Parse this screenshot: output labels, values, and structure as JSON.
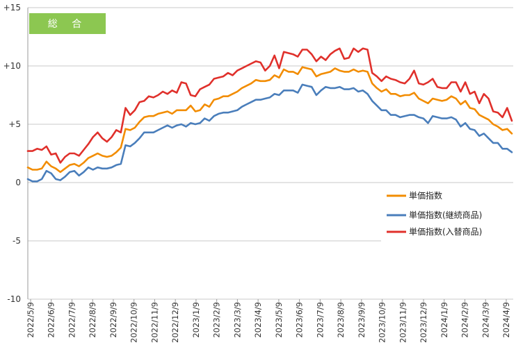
{
  "chart_data": {
    "type": "line",
    "title": "",
    "badge": {
      "label": "総 合",
      "color": "#8cc751"
    },
    "xlabel": "",
    "ylabel": "",
    "ylim": [
      -10,
      15
    ],
    "y_ticks": [
      {
        "value": 15,
        "label": "+15"
      },
      {
        "value": 10,
        "label": "+10"
      },
      {
        "value": 5,
        "label": "+5"
      },
      {
        "value": 0,
        "label": "0"
      },
      {
        "value": -5,
        "label": "-5"
      },
      {
        "value": -10,
        "label": "-10"
      }
    ],
    "x_tick_labels": [
      "2022/5/9",
      "2022/6/9",
      "2022/7/9",
      "2022/8/9",
      "2022/9/9",
      "2022/10/9",
      "2022/11/9",
      "2022/12/9",
      "2023/1/9",
      "2023/2/9",
      "2023/3/9",
      "2023/4/9",
      "2023/5/9",
      "2023/6/9",
      "2023/7/9",
      "2023/8/9",
      "2023/9/9",
      "2023/10/9",
      "2023/11/9",
      "2023/12/9",
      "2024/1/9",
      "2024/2/9",
      "2024/3/9",
      "2024/4/9"
    ],
    "grid": "horizontal",
    "legend_position": "lower-right",
    "series": [
      {
        "name": "単価指数",
        "color": "#f28c00",
        "values": [
          1.3,
          1.1,
          1.1,
          1.2,
          1.8,
          1.4,
          1.2,
          0.9,
          1.2,
          1.5,
          1.6,
          1.4,
          1.7,
          2.1,
          2.3,
          2.5,
          2.3,
          2.2,
          2.3,
          2.6,
          3.0,
          4.6,
          4.5,
          4.7,
          5.2,
          5.6,
          5.7,
          5.7,
          5.9,
          6.0,
          6.1,
          5.9,
          6.2,
          6.2,
          6.2,
          6.6,
          6.1,
          6.2,
          6.7,
          6.5,
          7.1,
          7.2,
          7.4,
          7.4,
          7.6,
          7.8,
          8.1,
          8.3,
          8.5,
          8.8,
          8.7,
          8.7,
          8.8,
          9.2,
          9.0,
          9.7,
          9.5,
          9.5,
          9.3,
          9.9,
          9.8,
          9.7,
          9.1,
          9.3,
          9.4,
          9.5,
          9.8,
          9.6,
          9.5,
          9.5,
          9.7,
          9.5,
          9.6,
          9.5,
          8.5,
          8.1,
          7.8,
          8.0,
          7.6,
          7.6,
          7.4,
          7.5,
          7.5,
          7.7,
          7.2,
          7.0,
          6.8,
          7.2,
          7.1,
          7.0,
          7.1,
          7.4,
          7.2,
          6.7,
          7.0,
          6.4,
          6.3,
          5.8,
          5.6,
          5.4,
          5.0,
          4.8,
          4.5,
          4.6,
          4.2
        ]
      },
      {
        "name": "単価指数(継続商品)",
        "color": "#4a7ebb",
        "values": [
          0.3,
          0.1,
          0.1,
          0.3,
          1.0,
          0.8,
          0.3,
          0.2,
          0.5,
          0.9,
          1.0,
          0.6,
          0.9,
          1.3,
          1.1,
          1.3,
          1.2,
          1.2,
          1.3,
          1.5,
          1.6,
          3.2,
          3.1,
          3.4,
          3.8,
          4.3,
          4.3,
          4.3,
          4.5,
          4.7,
          4.9,
          4.7,
          4.9,
          5.0,
          4.8,
          5.1,
          5.0,
          5.1,
          5.5,
          5.3,
          5.7,
          5.9,
          6.0,
          6.0,
          6.1,
          6.2,
          6.5,
          6.7,
          6.9,
          7.1,
          7.1,
          7.2,
          7.3,
          7.6,
          7.5,
          7.9,
          7.9,
          7.9,
          7.7,
          8.4,
          8.3,
          8.2,
          7.5,
          7.9,
          8.2,
          8.1,
          8.1,
          8.2,
          8.0,
          8.0,
          8.1,
          7.8,
          7.9,
          7.6,
          7.0,
          6.6,
          6.2,
          6.2,
          5.8,
          5.8,
          5.6,
          5.7,
          5.8,
          5.8,
          5.6,
          5.5,
          5.1,
          5.7,
          5.6,
          5.5,
          5.5,
          5.6,
          5.4,
          4.8,
          5.1,
          4.6,
          4.5,
          4.0,
          4.2,
          3.8,
          3.4,
          3.4,
          2.9,
          2.9,
          2.6
        ]
      },
      {
        "name": "単価指数(入替商品)",
        "color": "#e0302b",
        "values": [
          2.7,
          2.7,
          2.9,
          2.8,
          3.1,
          2.4,
          2.5,
          1.7,
          2.2,
          2.5,
          2.5,
          2.3,
          2.8,
          3.3,
          3.9,
          4.3,
          3.8,
          3.5,
          3.9,
          4.5,
          4.3,
          6.4,
          5.8,
          6.2,
          6.9,
          7.0,
          7.4,
          7.3,
          7.5,
          7.8,
          7.6,
          7.9,
          7.7,
          8.6,
          8.5,
          7.5,
          7.4,
          8.0,
          8.2,
          8.4,
          8.9,
          9.0,
          9.1,
          9.4,
          9.2,
          9.6,
          9.8,
          10.0,
          10.2,
          10.4,
          10.3,
          9.6,
          10.0,
          10.9,
          9.8,
          11.2,
          11.1,
          11.0,
          10.8,
          11.4,
          11.4,
          11.0,
          10.4,
          10.8,
          10.5,
          11.0,
          11.3,
          11.5,
          10.6,
          10.7,
          11.5,
          11.2,
          11.5,
          11.4,
          9.4,
          9.1,
          8.7,
          9.1,
          8.9,
          8.8,
          8.6,
          8.5,
          8.9,
          9.6,
          8.5,
          8.4,
          8.6,
          8.9,
          8.2,
          8.1,
          8.1,
          8.6,
          8.6,
          7.8,
          8.6,
          7.6,
          7.8,
          6.8,
          7.6,
          7.2,
          6.1,
          6.0,
          5.6,
          6.4,
          5.3
        ]
      }
    ]
  }
}
